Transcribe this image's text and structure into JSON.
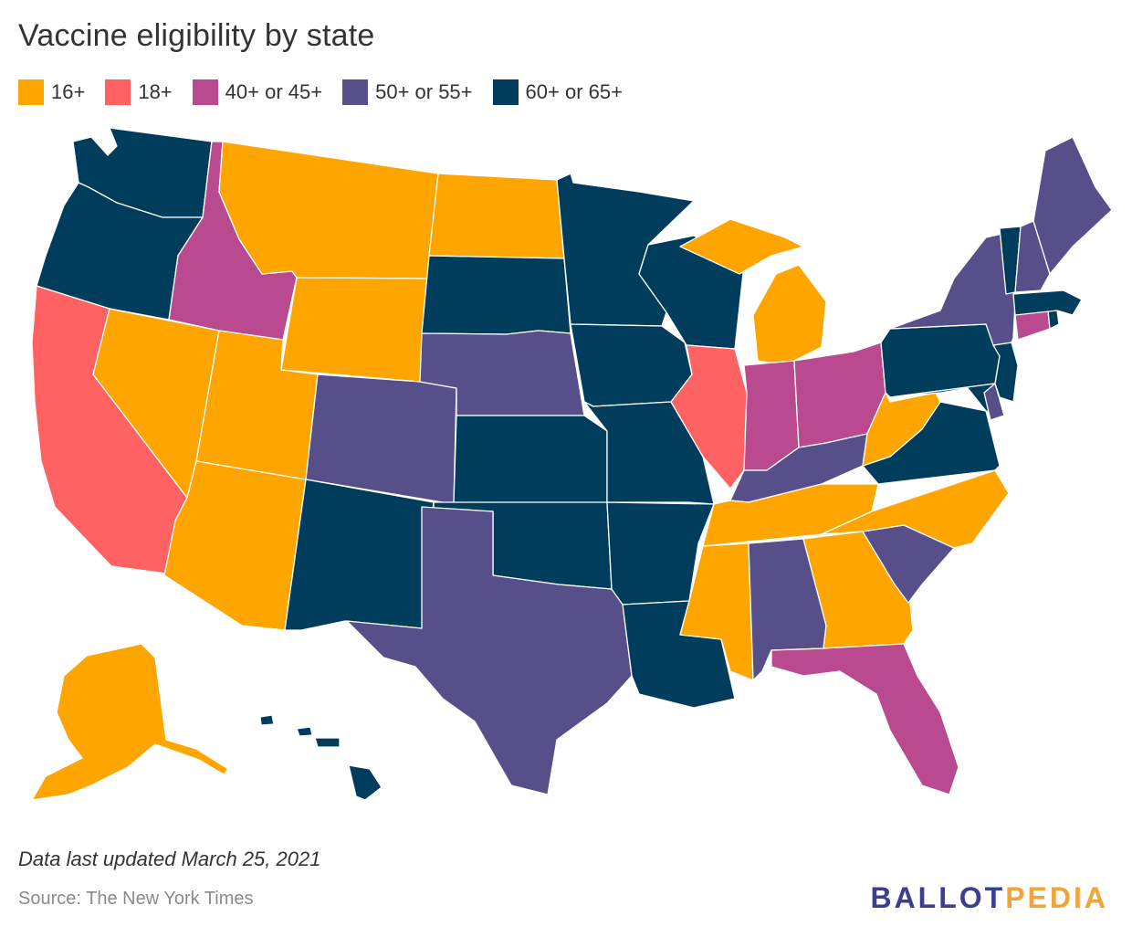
{
  "title": "Vaccine eligibility by state",
  "legend": [
    {
      "label": "16+",
      "color": "#ffa500"
    },
    {
      "label": "18+",
      "color": "#fe6262"
    },
    {
      "label": "40+ or 45+",
      "color": "#b94a8f"
    },
    {
      "label": "50+ or 55+",
      "color": "#564f8a"
    },
    {
      "label": "60+ or 65+",
      "color": "#003c5b"
    }
  ],
  "states": {
    "WA": "60+ or 65+",
    "OR": "60+ or 65+",
    "CA": "18+",
    "NV": "16+",
    "ID": "40+ or 45+",
    "MT": "16+",
    "WY": "16+",
    "UT": "16+",
    "AZ": "16+",
    "CO": "50+ or 55+",
    "NM": "60+ or 65+",
    "ND": "16+",
    "SD": "60+ or 65+",
    "NE": "50+ or 55+",
    "KS": "60+ or 65+",
    "OK": "60+ or 65+",
    "TX": "50+ or 55+",
    "MN": "60+ or 65+",
    "IA": "60+ or 65+",
    "MO": "60+ or 65+",
    "AR": "60+ or 65+",
    "LA": "60+ or 65+",
    "WI": "60+ or 65+",
    "IL": "18+",
    "MI": "16+",
    "IN": "40+ or 45+",
    "OH": "40+ or 45+",
    "KY": "50+ or 55+",
    "TN": "16+",
    "MS": "16+",
    "AL": "50+ or 55+",
    "GA": "16+",
    "FL": "40+ or 45+",
    "SC": "50+ or 55+",
    "NC": "16+",
    "VA": "60+ or 65+",
    "WV": "16+",
    "MD": "60+ or 65+",
    "DE": "50+ or 55+",
    "PA": "60+ or 65+",
    "NJ": "60+ or 65+",
    "NY": "50+ or 55+",
    "CT": "40+ or 45+",
    "RI": "60+ or 65+",
    "MA": "60+ or 65+",
    "VT": "60+ or 65+",
    "NH": "50+ or 55+",
    "ME": "50+ or 55+",
    "AK": "16+",
    "HI": "60+ or 65+"
  },
  "note": "Data last updated March 25, 2021",
  "source": "Source: The New York Times",
  "logo": {
    "part1": "BALLOT",
    "part2": "PEDIA"
  }
}
